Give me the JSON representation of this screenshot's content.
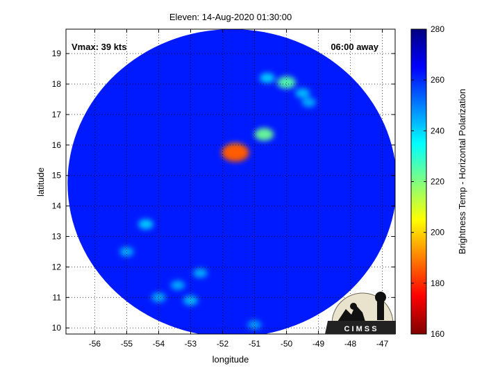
{
  "chart_data": {
    "type": "heatmap",
    "title": "Eleven: 14-Aug-2020 01:30:00",
    "xlabel": "longitude",
    "ylabel": "latitude",
    "xlim": [
      -56.9,
      -46.6
    ],
    "ylim": [
      9.8,
      19.8
    ],
    "xticks": [
      -56,
      -55,
      -54,
      -53,
      -52,
      -51,
      -50,
      -49,
      -48,
      -47
    ],
    "yticks": [
      10,
      11,
      12,
      13,
      14,
      15,
      16,
      17,
      18,
      19
    ],
    "grid": true,
    "annotations": {
      "vmax": "Vmax: 39 kts",
      "time_away": "06:00 away"
    },
    "colorbar": {
      "label": "Brightness Temp - Horizontal Polarization",
      "range": [
        160,
        280
      ],
      "ticks": [
        160,
        180,
        200,
        220,
        240,
        260,
        280
      ],
      "colormap": "jet"
    },
    "swath": {
      "center_lon": -51.7,
      "center_lat": 14.75,
      "radius_deg_lon": 5.15,
      "radius_deg_lat": 5.05,
      "background_value": 262
    },
    "cold_features": [
      {
        "lon": -51.6,
        "lat": 15.8,
        "value": 200
      },
      {
        "lon": -51.6,
        "lat": 15.75,
        "value": 185
      },
      {
        "lon": -50.7,
        "lat": 16.35,
        "value": 222
      },
      {
        "lon": -50.0,
        "lat": 18.05,
        "value": 225
      },
      {
        "lon": -49.5,
        "lat": 17.7,
        "value": 242
      },
      {
        "lon": -49.3,
        "lat": 17.4,
        "value": 244
      },
      {
        "lon": -50.6,
        "lat": 18.2,
        "value": 240
      },
      {
        "lon": -54.4,
        "lat": 13.4,
        "value": 240
      },
      {
        "lon": -55.0,
        "lat": 12.5,
        "value": 244
      },
      {
        "lon": -53.0,
        "lat": 10.9,
        "value": 242
      },
      {
        "lon": -53.4,
        "lat": 11.4,
        "value": 244
      },
      {
        "lon": -52.7,
        "lat": 11.8,
        "value": 244
      },
      {
        "lon": -54.0,
        "lat": 11.0,
        "value": 244
      },
      {
        "lon": -51.0,
        "lat": 10.1,
        "value": 246
      }
    ],
    "logo_text": "C I M S S"
  }
}
